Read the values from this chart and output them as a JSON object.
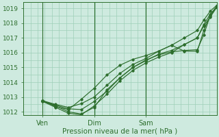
{
  "title": "",
  "xlabel": "Pression niveau de la mer( hPa )",
  "bg_color": "#ceeadf",
  "line_color": "#2d6e2d",
  "grid_color": "#9ecfb8",
  "axis_color": "#2d6e2d",
  "ylim": [
    1011.8,
    1019.4
  ],
  "yticks": [
    1012,
    1013,
    1014,
    1015,
    1016,
    1017,
    1018,
    1019
  ],
  "xlim": [
    0,
    3.0
  ],
  "xtick_positions": [
    0.3,
    1.1,
    1.9
  ],
  "xtick_labels": [
    "Ven",
    "Dim",
    "Sam"
  ],
  "vlines": [
    0.3,
    1.1,
    1.9
  ],
  "series": [
    [
      1012.75,
      1012.35,
      1012.15,
      1012.85,
      1013.6,
      1014.5,
      1015.15,
      1015.55,
      1015.8,
      1016.1,
      1016.5,
      1017.0,
      1017.5,
      1018.2,
      1018.8,
      1019.2,
      1019.25
    ],
    [
      1012.75,
      1012.4,
      1012.0,
      1011.85,
      1012.3,
      1013.5,
      1014.3,
      1015.0,
      1015.5,
      1015.85,
      1016.05,
      1016.15,
      1016.2,
      1017.2,
      1018.5,
      1019.1,
      1019.25
    ],
    [
      1012.7,
      1012.3,
      1011.9,
      1011.8,
      1012.4,
      1013.2,
      1014.1,
      1014.8,
      1015.3,
      1015.7,
      1016.0,
      1016.55,
      1017.0,
      1017.8,
      1018.4,
      1019.05,
      1019.2
    ],
    [
      1012.75,
      1012.5,
      1012.3,
      1012.55,
      1013.0,
      1013.8,
      1014.6,
      1015.2,
      1015.6,
      1016.1,
      1016.5,
      1016.1,
      1016.1,
      1017.5,
      1018.5,
      1019.15,
      1019.35
    ],
    [
      1012.7,
      1012.45,
      1012.2,
      1012.15,
      1012.7,
      1013.4,
      1014.3,
      1015.0,
      1015.45,
      1015.9,
      1016.15,
      1016.55,
      1017.0,
      1017.9,
      1018.6,
      1019.1,
      1019.3
    ]
  ],
  "x_points": [
    0.3,
    0.5,
    0.7,
    0.9,
    1.1,
    1.3,
    1.5,
    1.7,
    1.9,
    2.1,
    2.3,
    2.5,
    2.7,
    2.8,
    2.9,
    3.0,
    3.05
  ]
}
